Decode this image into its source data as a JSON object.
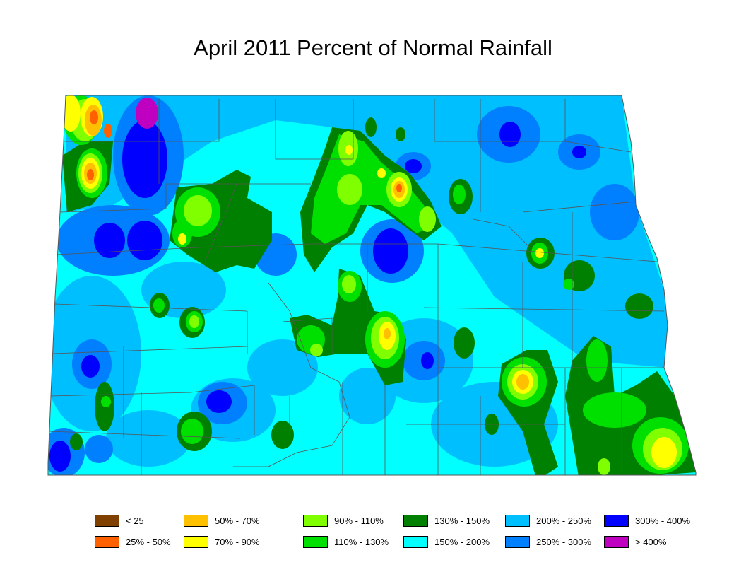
{
  "title": "April 2011 Percent of Normal Rainfall",
  "colors": {
    "c150_200": "#00ffff",
    "c200_250": "#00bfff",
    "c250_300": "#0080ff",
    "c300_400": "#0000ff",
    "c400": "#c000c0",
    "c130_150": "#008000",
    "c110_130": "#00e000",
    "c90_110": "#80ff00",
    "c70_90": "#ffff00",
    "c50_70": "#ffc000",
    "c25_50": "#ff6000",
    "border": "#555555"
  },
  "legend": {
    "items": [
      {
        "label": "< 25",
        "color": "#804000"
      },
      {
        "label": "25% - 50%",
        "color": "#ff6000"
      },
      {
        "label": "50% - 70%",
        "color": "#ffc000"
      },
      {
        "label": "70% - 90%",
        "color": "#ffff00"
      },
      {
        "label": "90% - 110%",
        "color": "#80ff00"
      },
      {
        "label": "110% - 130%",
        "color": "#00e000"
      },
      {
        "label": "130% - 150%",
        "color": "#008000"
      },
      {
        "label": "150% - 200%",
        "color": "#00ffff"
      },
      {
        "label": "200% - 250%",
        "color": "#00bfff"
      },
      {
        "label": "250% - 300%",
        "color": "#0080ff"
      },
      {
        "label": "300% - 400%",
        "color": "#0000ff"
      },
      {
        "label": "> 400%",
        "color": "#c000c0"
      }
    ]
  }
}
